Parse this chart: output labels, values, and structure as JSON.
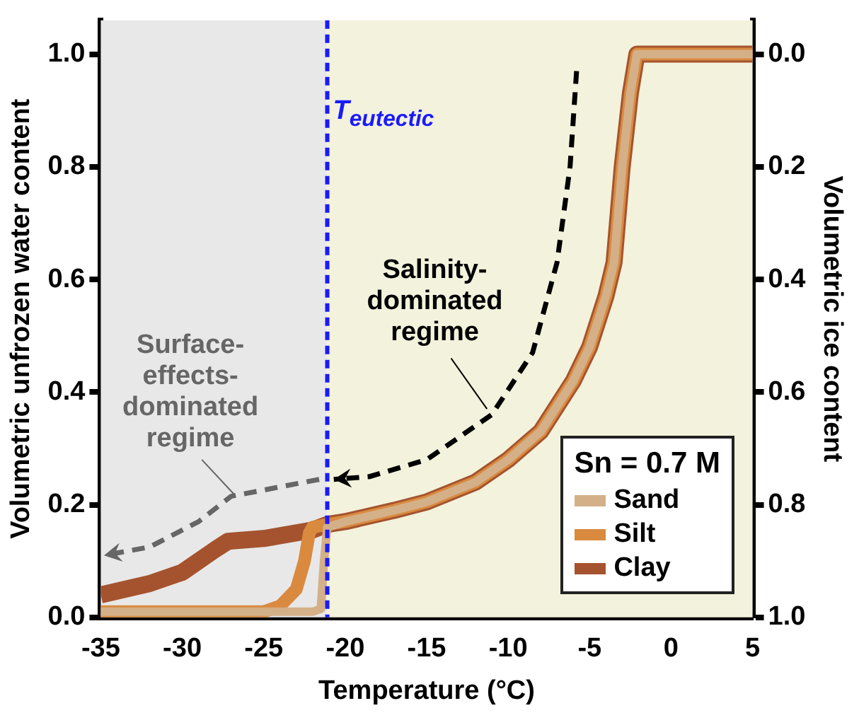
{
  "chart_data": {
    "type": "line",
    "xlabel": "Temperature (°C)",
    "ylabel": "Volumetric unfrozen water content",
    "y2label": "Volumetric ice content",
    "legend_title": "Sn = 0.7 M",
    "legend": "bottom right",
    "marker": "none",
    "line_style": "solid",
    "grid": false,
    "xlim": [
      -35,
      5
    ],
    "xticks": [
      -35,
      -30,
      -25,
      -20,
      -15,
      -10,
      -5,
      0,
      5
    ],
    "ylim": [
      0,
      1.06
    ],
    "yticks": [
      {
        "value": 0,
        "label": "0.0"
      },
      {
        "value": 0.2,
        "label": "0.2"
      },
      {
        "value": 0.4,
        "label": "0.4"
      },
      {
        "value": 0.6,
        "label": "0.6"
      },
      {
        "value": 0.8,
        "label": "0.8"
      },
      {
        "value": 1,
        "label": "1.0"
      }
    ],
    "y2lim": [
      1,
      -0.06
    ],
    "y2ticks": [
      {
        "value": 0,
        "label": "0.0"
      },
      {
        "value": 0.2,
        "label": "0.2"
      },
      {
        "value": 0.4,
        "label": "0.4"
      },
      {
        "value": 0.6,
        "label": "0.6"
      },
      {
        "value": 0.8,
        "label": "0.8"
      },
      {
        "value": 1,
        "label": "1.0"
      }
    ],
    "series": [
      {
        "name": "Sand",
        "color": "#d4b088",
        "x": [
          -35,
          -22,
          -21.5,
          -21.3,
          -21.1,
          -20,
          -17,
          -15,
          -12,
          -10,
          -8,
          -6,
          -5,
          -4,
          -3.5,
          -3,
          -2.5,
          -2.1,
          5
        ],
        "values": [
          0.01,
          0.01,
          0.015,
          0.1,
          0.16,
          0.17,
          0.19,
          0.205,
          0.24,
          0.28,
          0.33,
          0.42,
          0.48,
          0.57,
          0.63,
          0.8,
          0.93,
          1,
          1
        ]
      },
      {
        "name": "Silt",
        "color": "#d98a3f",
        "x": [
          -35,
          -25,
          -24,
          -23,
          -22.5,
          -22.2,
          -22,
          -21.1,
          -20,
          -17,
          -15,
          -12,
          -10,
          -8,
          -6,
          -5,
          -4,
          -3.5,
          -3,
          -2.5,
          -2.1,
          5
        ],
        "values": [
          0.01,
          0.01,
          0.02,
          0.05,
          0.1,
          0.15,
          0.16,
          0.165,
          0.17,
          0.19,
          0.205,
          0.24,
          0.28,
          0.33,
          0.42,
          0.48,
          0.57,
          0.63,
          0.8,
          0.93,
          1,
          1
        ]
      },
      {
        "name": "Clay",
        "color": "#a5532e",
        "x": [
          -35,
          -32,
          -30,
          -28,
          -27.2,
          -25,
          -22,
          -21.1,
          -20,
          -17,
          -15,
          -12,
          -10,
          -8,
          -6,
          -5,
          -4,
          -3.5,
          -3,
          -2.5,
          -2.1,
          5
        ],
        "values": [
          0.04,
          0.06,
          0.08,
          0.12,
          0.135,
          0.14,
          0.155,
          0.165,
          0.17,
          0.19,
          0.205,
          0.24,
          0.28,
          0.33,
          0.42,
          0.48,
          0.57,
          0.63,
          0.8,
          0.93,
          1,
          1
        ]
      }
    ],
    "bands": [
      {
        "axis": "x",
        "from": -35,
        "to": -21.1,
        "color": "#e8e8e8"
      },
      {
        "axis": "x",
        "from": -21.1,
        "to": 5,
        "color": "#f3f2dc"
      }
    ],
    "ref_lines": [
      {
        "axis": "x",
        "value": -21.1,
        "label": "T$_{eutectic}$",
        "color": "#1a1aff",
        "line_style": "dashed"
      }
    ],
    "annotations": [
      "Salinity-\ndominated\nregime",
      "Surface-\neffects-\ndominated\nregime"
    ]
  }
}
